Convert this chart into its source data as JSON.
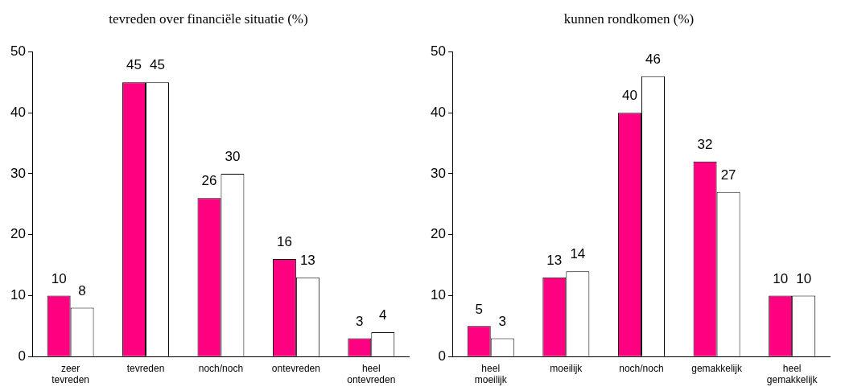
{
  "chart_data": [
    {
      "type": "bar",
      "title": "tevreden over financiële situatie (%)",
      "categories": [
        "zeer tevreden",
        "tevreden",
        "noch/noch",
        "ontevreden",
        "heel ontevreden"
      ],
      "series": [
        {
          "color": "#ff0080",
          "values": [
            10,
            45,
            26,
            16,
            3
          ]
        },
        {
          "color": "#ffffff",
          "values": [
            8,
            45,
            30,
            13,
            4
          ]
        }
      ],
      "ylim": [
        0,
        50
      ],
      "yticks": [
        0,
        10,
        20,
        30,
        40,
        50
      ],
      "grid": false,
      "legend": false,
      "data_labels": true
    },
    {
      "type": "bar",
      "title": "kunnen rondkomen (%)",
      "categories": [
        "heel moeilijk",
        "moeilijk",
        "noch/noch",
        "gemakkelijk",
        "heel gemakkelijk"
      ],
      "series": [
        {
          "color": "#ff0080",
          "values": [
            5,
            13,
            40,
            32,
            10
          ]
        },
        {
          "color": "#ffffff",
          "values": [
            3,
            14,
            46,
            27,
            10
          ]
        }
      ],
      "ylim": [
        0,
        50
      ],
      "yticks": [
        0,
        10,
        20,
        30,
        40,
        50
      ],
      "grid": false,
      "legend": false,
      "data_labels": true
    }
  ]
}
